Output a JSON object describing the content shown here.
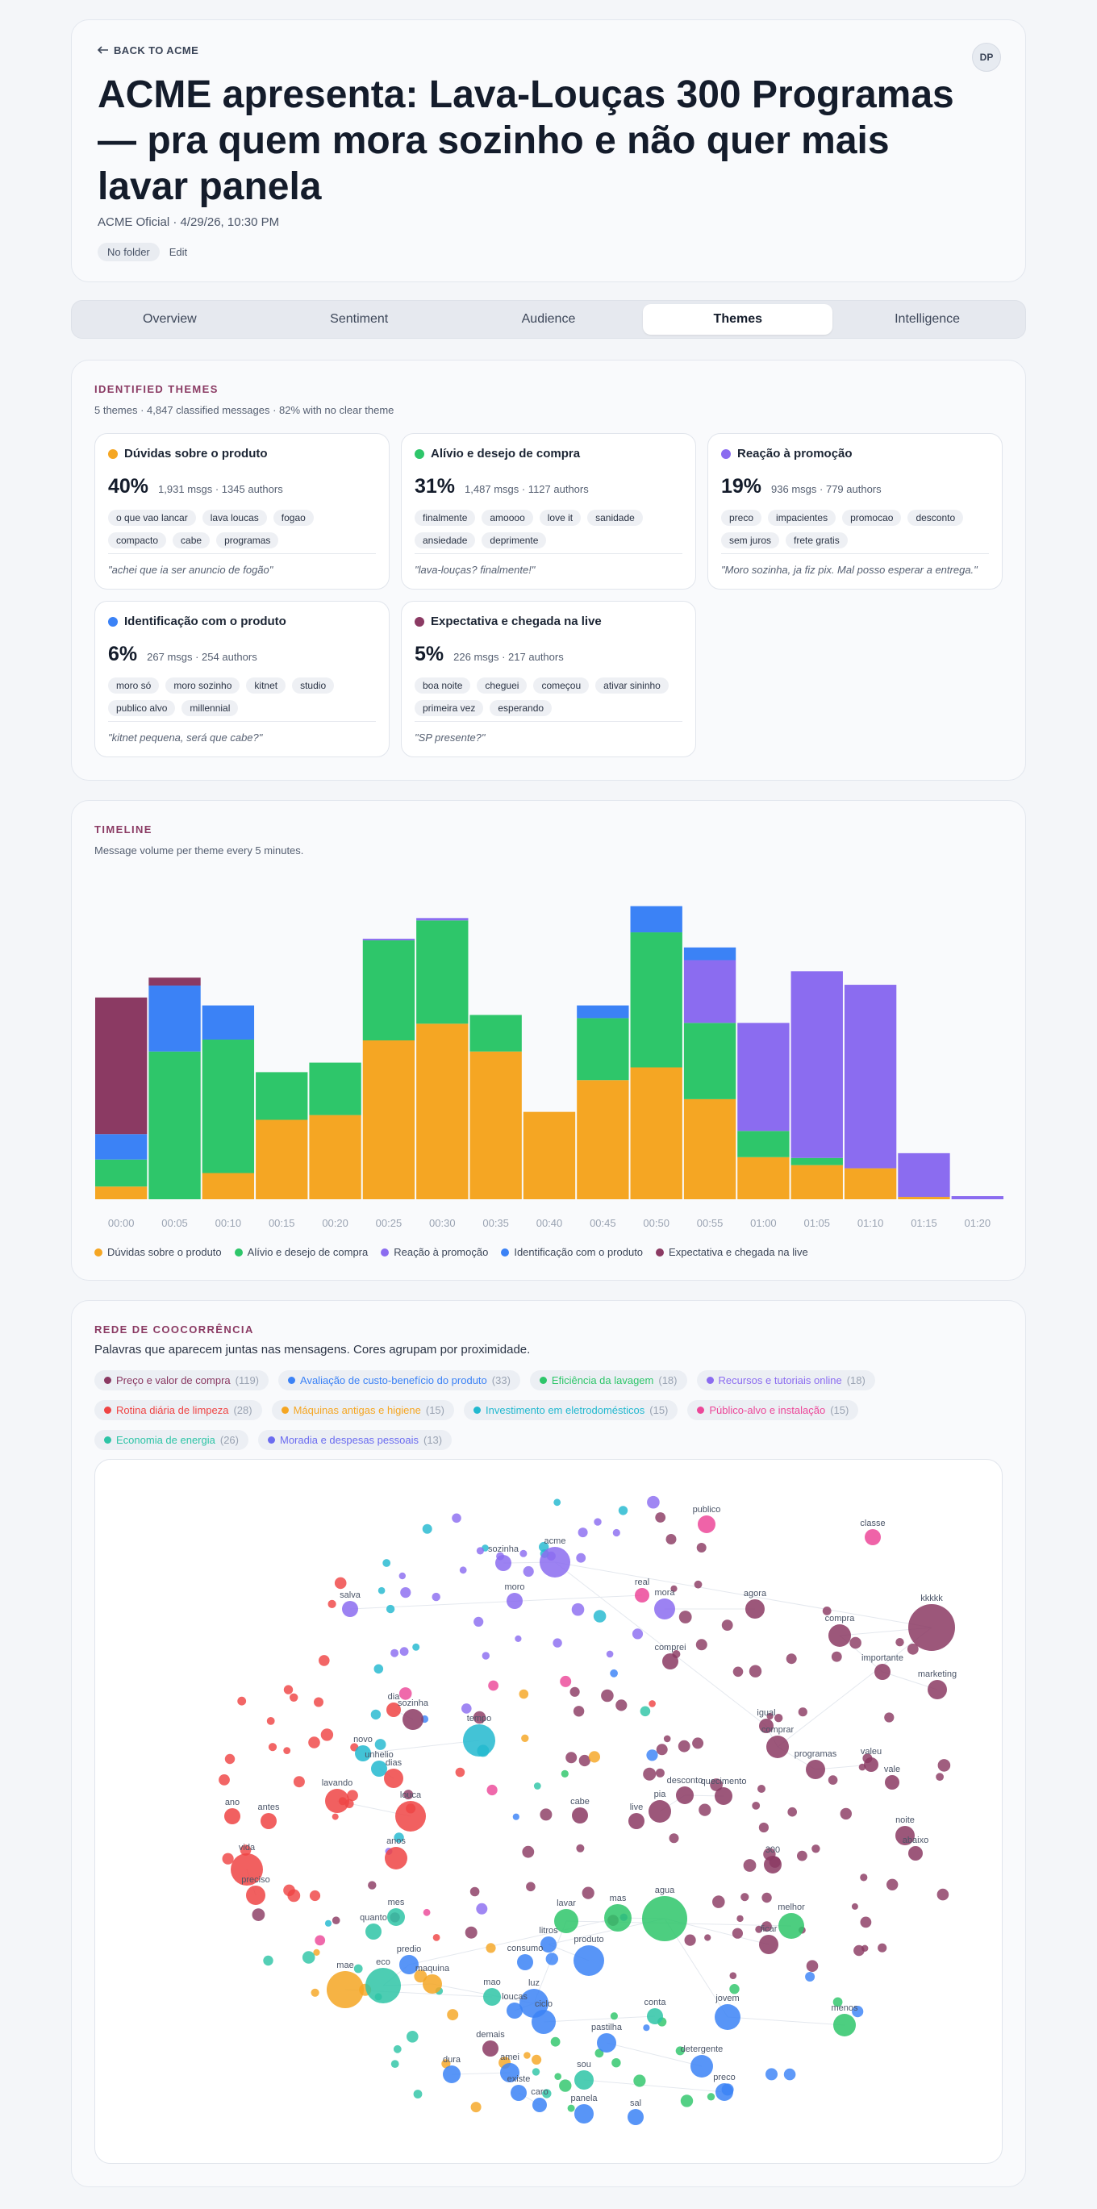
{
  "header": {
    "back_label": "BACK TO ACME",
    "avatar": "DP",
    "title": "ACME apresenta: Lava-Louças 300 Programas — pra quem mora sozinho e não quer mais lavar panela",
    "meta": "ACME Oficial · 4/29/26, 10:30 PM",
    "folder": "No folder",
    "edit": "Edit"
  },
  "tabs": [
    {
      "label": "Overview"
    },
    {
      "label": "Sentiment"
    },
    {
      "label": "Audience"
    },
    {
      "label": "Themes"
    },
    {
      "label": "Intelligence"
    }
  ],
  "active_tab": "Themes",
  "themes": {
    "heading": "IDENTIFIED THEMES",
    "summary": "5 themes · 4,847 classified messages · 82% with no clear theme",
    "items": [
      {
        "name": "Dúvidas sobre o produto",
        "color": "#f5a623",
        "pct": "40%",
        "stats": "1,931 msgs · 1345 authors",
        "tags": [
          "o que vao lancar",
          "lava loucas",
          "fogao",
          "compacto",
          "cabe",
          "programas"
        ],
        "quote": "\"achei que ia ser anuncio de fogão\""
      },
      {
        "name": "Alívio e desejo de compra",
        "color": "#2ec66a",
        "pct": "31%",
        "stats": "1,487 msgs · 1127 authors",
        "tags": [
          "finalmente",
          "amoooo",
          "love it",
          "sanidade",
          "ansiedade",
          "deprimente"
        ],
        "quote": "\"lava-louças? finalmente!\""
      },
      {
        "name": "Reação à promoção",
        "color": "#8b6cf0",
        "pct": "19%",
        "stats": "936 msgs · 779 authors",
        "tags": [
          "preco",
          "impacientes",
          "promocao",
          "desconto",
          "sem juros",
          "frete gratis"
        ],
        "quote": "\"Moro sozinha, ja fiz pix. Mal posso esperar a entrega.\""
      },
      {
        "name": "Identificação com o produto",
        "color": "#3b82f6",
        "pct": "6%",
        "stats": "267 msgs · 254 authors",
        "tags": [
          "moro só",
          "moro sozinho",
          "kitnet",
          "studio",
          "publico alvo",
          "millennial"
        ],
        "quote": "\"kitnet pequena, será que cabe?\""
      },
      {
        "name": "Expectativa e chegada na live",
        "color": "#8b3a63",
        "pct": "5%",
        "stats": "226 msgs · 217 authors",
        "tags": [
          "boa noite",
          "cheguei",
          "começou",
          "ativar sininho",
          "primeira vez",
          "esperando"
        ],
        "quote": "\"SP presente?\""
      }
    ]
  },
  "timeline": {
    "heading": "TIMELINE",
    "subtitle": "Message volume per theme every 5 minutes."
  },
  "chart_data": {
    "type": "bar",
    "stacked": true,
    "categories": [
      "00:00",
      "00:05",
      "00:10",
      "00:15",
      "00:20",
      "00:25",
      "00:30",
      "00:35",
      "00:40",
      "00:45",
      "00:50",
      "00:55",
      "01:00",
      "01:05",
      "01:10",
      "01:15",
      "01:20"
    ],
    "series": [
      {
        "name": "Dúvidas sobre o produto",
        "color": "#f5a623",
        "values": [
          16,
          0,
          33,
          100,
          106,
          200,
          221,
          186,
          110,
          150,
          166,
          126,
          53,
          43,
          39,
          3,
          0
        ]
      },
      {
        "name": "Alívio e desejo de compra",
        "color": "#2ec66a",
        "values": [
          34,
          186,
          168,
          60,
          66,
          126,
          130,
          46,
          0,
          78,
          170,
          96,
          33,
          9,
          0,
          0,
          0
        ]
      },
      {
        "name": "Reação à promoção",
        "color": "#8b6cf0",
        "values": [
          0,
          0,
          0,
          0,
          0,
          2,
          3,
          0,
          0,
          0,
          0,
          79,
          136,
          235,
          231,
          55,
          4
        ]
      },
      {
        "name": "Identificação com o produto",
        "color": "#3b82f6",
        "values": [
          32,
          83,
          43,
          0,
          0,
          0,
          0,
          0,
          0,
          16,
          33,
          16,
          0,
          0,
          0,
          0,
          0
        ]
      },
      {
        "name": "Expectativa e chegada na live",
        "color": "#8b3a63",
        "values": [
          172,
          10,
          0,
          0,
          0,
          0,
          0,
          0,
          0,
          0,
          0,
          0,
          0,
          0,
          0,
          0,
          0
        ]
      }
    ],
    "grid": false,
    "legend": "bottom-left"
  },
  "network": {
    "heading": "REDE DE COOCORRÊNCIA",
    "subtitle": "Palavras que aparecem juntas nas mensagens. Cores agrupam por proximidade.",
    "clusters": [
      {
        "label": "Preço e valor de compra",
        "count": "(119)",
        "color": "#8b3a63"
      },
      {
        "label": "Avaliação de custo-benefício do produto",
        "count": "(33)",
        "color": "#3b82f6"
      },
      {
        "label": "Eficiência da lavagem",
        "count": "(18)",
        "color": "#2ec66a"
      },
      {
        "label": "Recursos e tutoriais online",
        "count": "(18)",
        "color": "#8b6cf0"
      },
      {
        "label": "Rotina diária de limpeza",
        "count": "(28)",
        "color": "#ef4444"
      },
      {
        "label": "Máquinas antigas e higiene",
        "count": "(15)",
        "color": "#f5a623"
      },
      {
        "label": "Investimento em eletrodomésticos",
        "count": "(15)",
        "color": "#22b8cf"
      },
      {
        "label": "Público-alvo e instalação",
        "count": "(15)",
        "color": "#ec4899"
      },
      {
        "label": "Economia de energia",
        "count": "(26)",
        "color": "#2ec4a6"
      },
      {
        "label": "Moradia e despesas pessoais",
        "count": "(13)",
        "color": "#6b6cf0"
      }
    ],
    "words": [
      {
        "t": "publico",
        "c": "#ec4899"
      },
      {
        "t": "classe",
        "c": "#ec4899"
      },
      {
        "t": "acme",
        "c": "#8b6cf0"
      },
      {
        "t": "sozinha",
        "c": "#8b6cf0"
      },
      {
        "t": "moro",
        "c": "#8b6cf0"
      },
      {
        "t": "salva",
        "c": "#8b6cf0"
      },
      {
        "t": "real",
        "c": "#ec4899"
      },
      {
        "t": "mora",
        "c": "#8b6cf0"
      },
      {
        "t": "agora",
        "c": "#8b3a63"
      },
      {
        "t": "kkkkk",
        "c": "#8b3a63"
      },
      {
        "t": "compra",
        "c": "#8b3a63"
      },
      {
        "t": "importante",
        "c": "#8b3a63"
      },
      {
        "t": "marketing",
        "c": "#8b3a63"
      },
      {
        "t": "comprei",
        "c": "#8b3a63"
      },
      {
        "t": "dia",
        "c": "#ef4444"
      },
      {
        "t": "sozinha",
        "c": "#8b3a63"
      },
      {
        "t": "tempo",
        "c": "#22b8cf"
      },
      {
        "t": "novo",
        "c": "#22b8cf"
      },
      {
        "t": "unhelio",
        "c": "#22b8cf"
      },
      {
        "t": "dias",
        "c": "#ef4444"
      },
      {
        "t": "igual",
        "c": "#8b3a63"
      },
      {
        "t": "comprar",
        "c": "#8b3a63"
      },
      {
        "t": "programas",
        "c": "#8b3a63"
      },
      {
        "t": "valeu",
        "c": "#8b3a63"
      },
      {
        "t": "vale",
        "c": "#8b3a63"
      },
      {
        "t": "lavando",
        "c": "#ef4444"
      },
      {
        "t": "louca",
        "c": "#ef4444"
      },
      {
        "t": "cabe",
        "c": "#8b3a63"
      },
      {
        "t": "pia",
        "c": "#8b3a63"
      },
      {
        "t": "desconto",
        "c": "#8b3a63"
      },
      {
        "t": "quecimento",
        "c": "#8b3a63"
      },
      {
        "t": "live",
        "c": "#8b3a63"
      },
      {
        "t": "ano",
        "c": "#ef4444"
      },
      {
        "t": "antes",
        "c": "#ef4444"
      },
      {
        "t": "noite",
        "c": "#8b3a63"
      },
      {
        "t": "abaixo",
        "c": "#8b3a63"
      },
      {
        "t": "vida",
        "c": "#ef4444"
      },
      {
        "t": "anos",
        "c": "#ef4444"
      },
      {
        "t": "300",
        "c": "#8b3a63"
      },
      {
        "t": "preciso",
        "c": "#ef4444"
      },
      {
        "t": "mas",
        "c": "#2ec66a"
      },
      {
        "t": "agua",
        "c": "#2ec66a"
      },
      {
        "t": "ficar",
        "c": "#8b3a63"
      },
      {
        "t": "mes",
        "c": "#2ec4a6"
      },
      {
        "t": "lavar",
        "c": "#2ec66a"
      },
      {
        "t": "melhor",
        "c": "#2ec66a"
      },
      {
        "t": "quanto",
        "c": "#2ec4a6"
      },
      {
        "t": "litros",
        "c": "#3b82f6"
      },
      {
        "t": "produto",
        "c": "#3b82f6"
      },
      {
        "t": "consumo",
        "c": "#3b82f6"
      },
      {
        "t": "predio",
        "c": "#3b82f6"
      },
      {
        "t": "eco",
        "c": "#2ec4a6"
      },
      {
        "t": "maquina",
        "c": "#f5a623"
      },
      {
        "t": "mae",
        "c": "#f5a623"
      },
      {
        "t": "mao",
        "c": "#2ec4a6"
      },
      {
        "t": "luz",
        "c": "#3b82f6"
      },
      {
        "t": "loucas",
        "c": "#3b82f6"
      },
      {
        "t": "ciclo",
        "c": "#3b82f6"
      },
      {
        "t": "conta",
        "c": "#2ec4a6"
      },
      {
        "t": "jovem",
        "c": "#3b82f6"
      },
      {
        "t": "menos",
        "c": "#2ec66a"
      },
      {
        "t": "demais",
        "c": "#8b3a63"
      },
      {
        "t": "pastilha",
        "c": "#3b82f6"
      },
      {
        "t": "detergente",
        "c": "#3b82f6"
      },
      {
        "t": "amei",
        "c": "#3b82f6"
      },
      {
        "t": "dura",
        "c": "#3b82f6"
      },
      {
        "t": "sou",
        "c": "#2ec4a6"
      },
      {
        "t": "preco",
        "c": "#3b82f6"
      },
      {
        "t": "existe",
        "c": "#3b82f6"
      },
      {
        "t": "caro",
        "c": "#3b82f6"
      },
      {
        "t": "panela",
        "c": "#3b82f6"
      },
      {
        "t": "sal",
        "c": "#3b82f6"
      },
      {
        "t": "sube",
        "c": "#2ec4a6"
      }
    ]
  }
}
